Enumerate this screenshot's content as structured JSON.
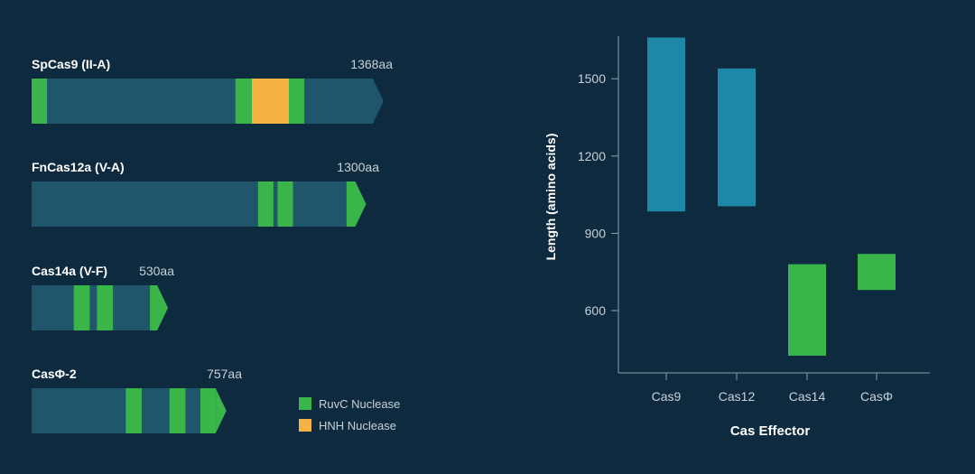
{
  "proteins": [
    {
      "name": "SpCas9 (II-A)",
      "length_label": "1368aa",
      "length": 1368,
      "ruvc": [
        [
          0,
          60
        ],
        [
          792,
          856
        ],
        [
          1000,
          1060
        ]
      ],
      "hnh": [
        [
          856,
          1000
        ]
      ]
    },
    {
      "name": "FnCas12a (V-A)",
      "length_label": "1300aa",
      "length": 1300,
      "ruvc": [
        [
          880,
          940
        ],
        [
          956,
          1016
        ],
        [
          1224,
          1300
        ]
      ],
      "hnh": []
    },
    {
      "name": "Cas14a (V-F)",
      "length_label": "530aa",
      "length": 530,
      "ruvc": [
        [
          164,
          226
        ],
        [
          254,
          316
        ],
        [
          460,
          530
        ]
      ],
      "hnh": []
    },
    {
      "name": "CasΦ-2",
      "length_label": "757aa",
      "length": 757,
      "ruvc": [
        [
          366,
          428
        ],
        [
          536,
          598
        ],
        [
          656,
          718
        ],
        [
          718,
          757
        ]
      ],
      "hnh": []
    }
  ],
  "legend": [
    {
      "label": "RuvC Nuclease",
      "color": "#3ab54a"
    },
    {
      "label": "HNH Nuclease",
      "color": "#f4b342"
    }
  ],
  "colors": {
    "background": "#0d2a3e",
    "protein_body": "#1f566b",
    "ruvc": "#3ab54a",
    "hnh": "#f4b342",
    "range_bar": "#1e88a8",
    "axis": "#8aa0ad"
  },
  "chart_data": {
    "type": "bar",
    "subtype": "floating-range",
    "xlabel": "Cas Effector",
    "ylabel": "Length (amino acids)",
    "categories": [
      "Cas9",
      "Cas12",
      "Cas14",
      "CasΦ"
    ],
    "ranges": [
      {
        "category": "Cas9",
        "low": 985,
        "high": 1660,
        "color": "#1e88a8"
      },
      {
        "category": "Cas12",
        "low": 1005,
        "high": 1540,
        "color": "#1e88a8"
      },
      {
        "category": "Cas14",
        "low": 425,
        "high": 780,
        "color": "#3ab54a"
      },
      {
        "category": "CasΦ",
        "low": 680,
        "high": 820,
        "color": "#3ab54a"
      }
    ],
    "yticks": [
      600,
      900,
      1200,
      1500
    ],
    "ylim": [
      380,
      1700
    ],
    "grid": false
  }
}
